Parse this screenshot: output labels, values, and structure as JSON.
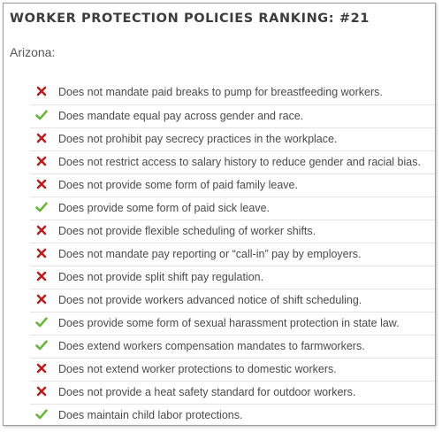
{
  "title": "WORKER PROTECTION POLICIES RANKING: #21",
  "state": "Arizona:",
  "colors": {
    "check": "#6db33f",
    "cross": "#b22222"
  },
  "policies": [
    {
      "status": "cross",
      "text": "Does not mandate paid breaks to pump for breastfeeding workers."
    },
    {
      "status": "check",
      "text": "Does mandate equal pay across gender and race."
    },
    {
      "status": "cross",
      "text": "Does not prohibit pay secrecy practices in the workplace."
    },
    {
      "status": "cross",
      "text": "Does not restrict access to salary history to reduce gender and racial bias."
    },
    {
      "status": "cross",
      "text": "Does not provide some form of paid family leave."
    },
    {
      "status": "check",
      "text": "Does provide some form of paid sick leave."
    },
    {
      "status": "cross",
      "text": "Does not provide flexible scheduling of worker shifts."
    },
    {
      "status": "cross",
      "text": "Does not mandate pay reporting or “call-in” pay by employers."
    },
    {
      "status": "cross",
      "text": "Does not provide split shift pay regulation."
    },
    {
      "status": "cross",
      "text": "Does not provide workers advanced notice of shift scheduling."
    },
    {
      "status": "check",
      "text": "Does provide some form of sexual harassment protection in state law."
    },
    {
      "status": "check",
      "text": "Does extend workers compensation mandates to farmworkers."
    },
    {
      "status": "cross",
      "text": "Does not extend worker protections to domestic workers."
    },
    {
      "status": "cross",
      "text": "Does not provide a heat safety standard for outdoor workers."
    },
    {
      "status": "check",
      "text": "Does maintain child labor protections."
    }
  ]
}
